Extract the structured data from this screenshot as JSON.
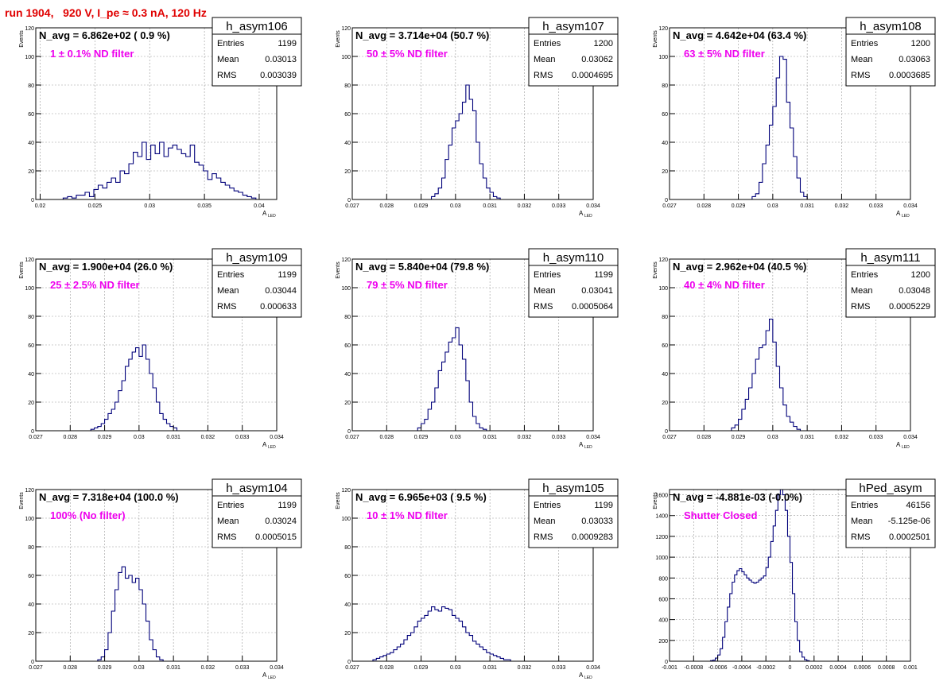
{
  "page": {
    "title": "run 1904,   920 V, I_pe ≈ 0.3 nA, 120 Hz"
  },
  "style": {
    "hist_color": "#00007a",
    "annotation_color": "#ee00ee",
    "title_color": "#e00000",
    "grid": true
  },
  "chart_data": [
    {
      "type": "histogram",
      "name": "h_asym106",
      "navg": "N_avg = 6.862e+02 ( 0.9 %)",
      "annotation": "1 ± 0.1% ND filter",
      "stats": {
        "Entries": "1199",
        "Mean": "0.03013",
        "RMS": "0.003039"
      },
      "xlabel": "A",
      "xlabel_sub": "LED",
      "ylabel": "Events",
      "xlim": [
        0.0196,
        0.0416
      ],
      "ylim": [
        0,
        120
      ],
      "xticks": [
        0.02,
        0.025,
        0.03,
        0.035,
        0.04
      ],
      "xtick_labels": [
        "0.02",
        "0.025",
        "0.03",
        "0.035",
        "0.04"
      ],
      "yticks": [
        0,
        20,
        40,
        60,
        80,
        100,
        120
      ],
      "ytick_labels": [
        "0",
        "20",
        "40",
        "60",
        "80",
        "100",
        "120"
      ],
      "bin_start": 0.0221,
      "bin_width": 0.0004,
      "counts": [
        1,
        2,
        1,
        3,
        3,
        5,
        2,
        7,
        10,
        8,
        12,
        15,
        12,
        20,
        18,
        25,
        33,
        30,
        40,
        28,
        38,
        32,
        40,
        30,
        36,
        38,
        35,
        32,
        30,
        38,
        26,
        24,
        20,
        14,
        18,
        15,
        12,
        10,
        8,
        6,
        5,
        3,
        2,
        1
      ]
    },
    {
      "type": "histogram",
      "name": "h_asym107",
      "navg": "N_avg = 3.714e+04 (50.7 %)",
      "annotation": "50 ± 5% ND filter",
      "stats": {
        "Entries": "1200",
        "Mean": "0.03062",
        "RMS": "0.0004695"
      },
      "xlabel": "A",
      "xlabel_sub": "LED",
      "ylabel": "Events",
      "xlim": [
        0.027,
        0.034
      ],
      "ylim": [
        0,
        120
      ],
      "xticks": [
        0.027,
        0.028,
        0.029,
        0.03,
        0.031,
        0.032,
        0.033,
        0.034
      ],
      "xtick_labels": [
        "0.027",
        "0.028",
        "0.029",
        "0.03",
        "0.031",
        "0.032",
        "0.033",
        "0.034"
      ],
      "yticks": [
        0,
        20,
        40,
        60,
        80,
        100,
        120
      ],
      "ytick_labels": [
        "0",
        "20",
        "40",
        "60",
        "80",
        "100",
        "120"
      ],
      "bin_start": 0.0293,
      "bin_width": 0.0001,
      "counts": [
        2,
        4,
        8,
        15,
        28,
        38,
        50,
        55,
        60,
        68,
        80,
        70,
        62,
        40,
        25,
        15,
        8,
        5,
        2,
        1
      ]
    },
    {
      "type": "histogram",
      "name": "h_asym108",
      "navg": "N_avg = 4.642e+04 (63.4 %)",
      "annotation": "63 ± 5% ND filter",
      "stats": {
        "Entries": "1200",
        "Mean": "0.03063",
        "RMS": "0.0003685"
      },
      "xlabel": "A",
      "xlabel_sub": "LED",
      "ylabel": "Events",
      "xlim": [
        0.027,
        0.034
      ],
      "ylim": [
        0,
        120
      ],
      "xticks": [
        0.027,
        0.028,
        0.029,
        0.03,
        0.031,
        0.032,
        0.033,
        0.034
      ],
      "xtick_labels": [
        "0.027",
        "0.028",
        "0.029",
        "0.03",
        "0.031",
        "0.032",
        "0.033",
        "0.034"
      ],
      "yticks": [
        0,
        20,
        40,
        60,
        80,
        100,
        120
      ],
      "ytick_labels": [
        "0",
        "20",
        "40",
        "60",
        "80",
        "100",
        "120"
      ],
      "bin_start": 0.0294,
      "bin_width": 0.0001,
      "counts": [
        2,
        4,
        12,
        25,
        38,
        52,
        65,
        85,
        100,
        98,
        68,
        50,
        30,
        15,
        5,
        2
      ]
    },
    {
      "type": "histogram",
      "name": "h_asym109",
      "navg": "N_avg = 1.900e+04 (26.0 %)",
      "annotation": "25 ± 2.5% ND filter",
      "stats": {
        "Entries": "1199",
        "Mean": "0.03044",
        "RMS": "0.000633"
      },
      "xlabel": "A",
      "xlabel_sub": "LED",
      "ylabel": "Events",
      "xlim": [
        0.027,
        0.034
      ],
      "ylim": [
        0,
        120
      ],
      "xticks": [
        0.027,
        0.028,
        0.029,
        0.03,
        0.031,
        0.032,
        0.033,
        0.034
      ],
      "xtick_labels": [
        "0.027",
        "0.028",
        "0.029",
        "0.03",
        "0.031",
        "0.032",
        "0.033",
        "0.034"
      ],
      "yticks": [
        0,
        20,
        40,
        60,
        80,
        100,
        120
      ],
      "ytick_labels": [
        "0",
        "20",
        "40",
        "60",
        "80",
        "100",
        "120"
      ],
      "bin_start": 0.0286,
      "bin_width": 0.0001,
      "counts": [
        1,
        2,
        3,
        5,
        8,
        12,
        15,
        20,
        28,
        35,
        45,
        50,
        55,
        58,
        52,
        60,
        50,
        40,
        30,
        20,
        12,
        8,
        5,
        3,
        2
      ]
    },
    {
      "type": "histogram",
      "name": "h_asym110",
      "navg": "N_avg = 5.840e+04 (79.8 %)",
      "annotation": "79 ± 5% ND filter",
      "stats": {
        "Entries": "1199",
        "Mean": "0.03041",
        "RMS": "0.0005064"
      },
      "xlabel": "A",
      "xlabel_sub": "LED",
      "ylabel": "Events",
      "xlim": [
        0.027,
        0.034
      ],
      "ylim": [
        0,
        120
      ],
      "xticks": [
        0.027,
        0.028,
        0.029,
        0.03,
        0.031,
        0.032,
        0.033,
        0.034
      ],
      "xtick_labels": [
        "0.027",
        "0.028",
        "0.029",
        "0.03",
        "0.031",
        "0.032",
        "0.033",
        "0.034"
      ],
      "yticks": [
        0,
        20,
        40,
        60,
        80,
        100,
        120
      ],
      "ytick_labels": [
        "0",
        "20",
        "40",
        "60",
        "80",
        "100",
        "120"
      ],
      "bin_start": 0.0289,
      "bin_width": 0.0001,
      "counts": [
        2,
        5,
        8,
        15,
        20,
        30,
        42,
        48,
        55,
        62,
        65,
        72,
        60,
        50,
        35,
        20,
        10,
        5,
        2,
        1
      ]
    },
    {
      "type": "histogram",
      "name": "h_asym111",
      "navg": "N_avg = 2.962e+04 (40.5 %)",
      "annotation": "40 ± 4% ND filter",
      "stats": {
        "Entries": "1200",
        "Mean": "0.03048",
        "RMS": "0.0005229"
      },
      "xlabel": "A",
      "xlabel_sub": "LED",
      "ylabel": "Events",
      "xlim": [
        0.027,
        0.034
      ],
      "ylim": [
        0,
        120
      ],
      "xticks": [
        0.027,
        0.028,
        0.029,
        0.03,
        0.031,
        0.032,
        0.033,
        0.034
      ],
      "xtick_labels": [
        "0.027",
        "0.028",
        "0.029",
        "0.03",
        "0.031",
        "0.032",
        "0.033",
        "0.034"
      ],
      "yticks": [
        0,
        20,
        40,
        60,
        80,
        100,
        120
      ],
      "ytick_labels": [
        "0",
        "20",
        "40",
        "60",
        "80",
        "100",
        "120"
      ],
      "bin_start": 0.0288,
      "bin_width": 0.0001,
      "counts": [
        2,
        4,
        8,
        15,
        22,
        30,
        40,
        50,
        58,
        60,
        70,
        78,
        62,
        45,
        30,
        18,
        10,
        6,
        3,
        1
      ]
    },
    {
      "type": "histogram",
      "name": "h_asym104",
      "navg": "N_avg = 7.318e+04 (100.0 %)",
      "annotation": "100% (No filter)",
      "stats": {
        "Entries": "1199",
        "Mean": "0.03024",
        "RMS": "0.0005015"
      },
      "xlabel": "A",
      "xlabel_sub": "LED",
      "ylabel": "Events",
      "xlim": [
        0.027,
        0.034
      ],
      "ylim": [
        0,
        120
      ],
      "xticks": [
        0.027,
        0.028,
        0.029,
        0.03,
        0.031,
        0.032,
        0.033,
        0.034
      ],
      "xtick_labels": [
        "0.027",
        "0.028",
        "0.029",
        "0.03",
        "0.031",
        "0.032",
        "0.033",
        "0.034"
      ],
      "yticks": [
        0,
        20,
        40,
        60,
        80,
        100,
        120
      ],
      "ytick_labels": [
        "0",
        "20",
        "40",
        "60",
        "80",
        "100",
        "120"
      ],
      "bin_start": 0.0288,
      "bin_width": 0.0001,
      "counts": [
        1,
        3,
        8,
        20,
        35,
        50,
        62,
        66,
        58,
        60,
        55,
        58,
        50,
        40,
        28,
        15,
        8,
        3,
        1
      ]
    },
    {
      "type": "histogram",
      "name": "h_asym105",
      "navg": "N_avg = 6.965e+03 ( 9.5 %)",
      "annotation": "10 ± 1% ND filter",
      "stats": {
        "Entries": "1199",
        "Mean": "0.03033",
        "RMS": "0.0009283"
      },
      "xlabel": "A",
      "xlabel_sub": "LED",
      "ylabel": "Events",
      "xlim": [
        0.027,
        0.034
      ],
      "ylim": [
        0,
        120
      ],
      "xticks": [
        0.027,
        0.028,
        0.029,
        0.03,
        0.031,
        0.032,
        0.033,
        0.034
      ],
      "xtick_labels": [
        "0.027",
        "0.028",
        "0.029",
        "0.03",
        "0.031",
        "0.032",
        "0.033",
        "0.034"
      ],
      "yticks": [
        0,
        20,
        40,
        60,
        80,
        100,
        120
      ],
      "ytick_labels": [
        "0",
        "20",
        "40",
        "60",
        "80",
        "100",
        "120"
      ],
      "bin_start": 0.0276,
      "bin_width": 0.0001,
      "counts": [
        1,
        2,
        3,
        4,
        5,
        6,
        8,
        10,
        12,
        15,
        18,
        20,
        24,
        28,
        30,
        32,
        35,
        38,
        36,
        35,
        38,
        37,
        36,
        32,
        30,
        28,
        24,
        20,
        18,
        14,
        12,
        10,
        8,
        6,
        5,
        4,
        3,
        2,
        1,
        1
      ]
    },
    {
      "type": "histogram",
      "name": "hPed_asym",
      "navg": "N_avg = -4.881e-03 (-0.0%)",
      "annotation": "Shutter Closed",
      "stats": {
        "Entries": "46156",
        "Mean": "-5.125e-06",
        "RMS": "0.0002501"
      },
      "xlabel": "",
      "xlabel_sub": "",
      "ylabel": "Events",
      "xlim": [
        -0.001,
        0.001
      ],
      "ylim": [
        0,
        1650
      ],
      "xticks": [
        -0.001,
        -0.0008,
        -0.0006,
        -0.0004,
        -0.0002,
        0,
        0.0002,
        0.0004,
        0.0006,
        0.0008,
        0.001
      ],
      "xtick_labels": [
        "-0.001",
        "-0.0008",
        "-0.0006",
        "-0.0004",
        "-0.0002",
        "0",
        "0.0002",
        "0.0004",
        "0.0006",
        "0.0008",
        "0.001"
      ],
      "yticks": [
        0,
        200,
        400,
        600,
        800,
        1000,
        1200,
        1400,
        1600
      ],
      "ytick_labels": [
        "0",
        "200",
        "400",
        "600",
        "800",
        "1000",
        "1200",
        "1400",
        "1600"
      ],
      "bin_start": -0.00066,
      "bin_width": 2e-05,
      "counts": [
        5,
        10,
        30,
        60,
        120,
        230,
        380,
        520,
        650,
        760,
        830,
        870,
        890,
        860,
        830,
        800,
        780,
        760,
        750,
        760,
        780,
        800,
        820,
        900,
        1000,
        1150,
        1300,
        1450,
        1600,
        1650,
        1600,
        1450,
        1200,
        950,
        650,
        380,
        200,
        90,
        40,
        15,
        5
      ]
    }
  ]
}
